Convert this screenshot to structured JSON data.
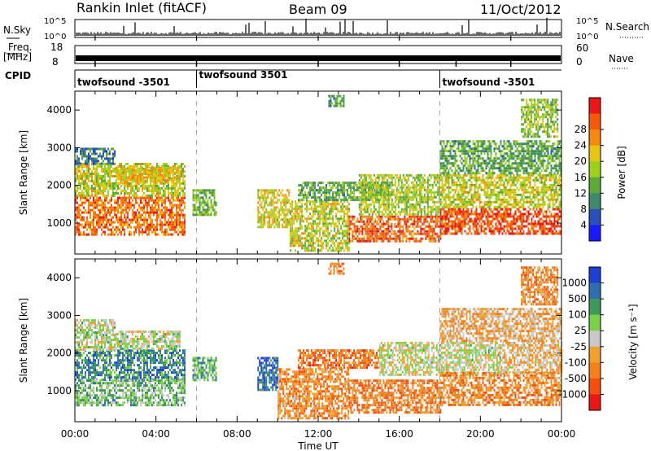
{
  "header": {
    "title": "Rankin Inlet (fitACF)",
    "beam": "Beam 09",
    "date": "11/Oct/2012"
  },
  "status_panels": {
    "nsky_label": "N.Sky",
    "nsky_ticks": [
      "10^5",
      "10^0"
    ],
    "nsearch_label": "N.Search",
    "nsearch_ticks": [
      "10^5",
      "10^0"
    ],
    "freq_label_1": "Freq.",
    "freq_label_2": "[MHz]",
    "freq_ticks": [
      "18",
      "8"
    ],
    "nave_label": "Nave",
    "nave_ticks": [
      "60",
      "0"
    ],
    "cpid_label": "CPID",
    "cpid_segments": [
      {
        "start_hour": 0,
        "end_hour": 6,
        "label": "twofsound -3501"
      },
      {
        "start_hour": 6,
        "end_hour": 18,
        "label": "twofsound 3501"
      },
      {
        "start_hour": 18,
        "end_hour": 24,
        "label": "twofsound -3501"
      }
    ]
  },
  "chart_data": [
    {
      "type": "heatmap",
      "parameter": "power",
      "ylabel": "Slant Range [km]",
      "xlabel": "",
      "x_range_hours": [
        0,
        24
      ],
      "ylim": [
        180,
        4500
      ],
      "y_ticks": [
        "1000",
        "2000",
        "3000",
        "4000"
      ],
      "colorbar_label": "Power [dB]",
      "colorbar_ticks": [
        "4",
        "8",
        "12",
        "16",
        "20",
        "24",
        "28"
      ],
      "colorbar_colors": [
        "#1a1aff",
        "#2a4fb8",
        "#3f8a6a",
        "#5caa3c",
        "#9fcf1e",
        "#e8c414",
        "#f28a12",
        "#f25a0e",
        "#e81818"
      ],
      "echo_bands": [
        {
          "start_hour": 0.0,
          "end_hour": 5.4,
          "range_low": 700,
          "range_high": 1700,
          "level": 0.82
        },
        {
          "start_hour": 0.0,
          "end_hour": 5.4,
          "range_low": 1700,
          "range_high": 2600,
          "level": 0.55
        },
        {
          "start_hour": 0.0,
          "end_hour": 2.0,
          "range_low": 2600,
          "range_high": 3000,
          "level": 0.22
        },
        {
          "start_hour": 2.0,
          "end_hour": 5.2,
          "range_low": 2100,
          "range_high": 2500,
          "level": 0.65
        },
        {
          "start_hour": 5.8,
          "end_hour": 7.0,
          "range_low": 1200,
          "range_high": 1900,
          "level": 0.4
        },
        {
          "start_hour": 9.0,
          "end_hour": 10.6,
          "range_low": 900,
          "range_high": 1900,
          "level": 0.6
        },
        {
          "start_hour": 10.6,
          "end_hour": 13.5,
          "range_low": 300,
          "range_high": 1600,
          "level": 0.55
        },
        {
          "start_hour": 11.0,
          "end_hour": 15.5,
          "range_low": 1600,
          "range_high": 2100,
          "level": 0.35
        },
        {
          "start_hour": 13.5,
          "end_hour": 18.0,
          "range_low": 500,
          "range_high": 1200,
          "level": 0.85
        },
        {
          "start_hour": 14.0,
          "end_hour": 18.0,
          "range_low": 1200,
          "range_high": 2300,
          "level": 0.5
        },
        {
          "start_hour": 18.0,
          "end_hour": 24.0,
          "range_low": 700,
          "range_high": 1400,
          "level": 0.9
        },
        {
          "start_hour": 18.0,
          "end_hour": 24.0,
          "range_low": 1400,
          "range_high": 2300,
          "level": 0.55
        },
        {
          "start_hour": 18.0,
          "end_hour": 24.0,
          "range_low": 2300,
          "range_high": 3200,
          "level": 0.35
        },
        {
          "start_hour": 12.5,
          "end_hour": 13.3,
          "range_low": 4100,
          "range_high": 4400,
          "level": 0.3
        },
        {
          "start_hour": 22.0,
          "end_hour": 23.8,
          "range_low": 3300,
          "range_high": 4300,
          "level": 0.45
        }
      ]
    },
    {
      "type": "heatmap",
      "parameter": "velocity",
      "ylabel": "Slant Range [km]",
      "xlabel": "Time UT",
      "x_range_hours": [
        0,
        24
      ],
      "x_ticks": [
        "00:00",
        "04:00",
        "08:00",
        "12:00",
        "16:00",
        "20:00",
        "00:00"
      ],
      "ylim": [
        180,
        4500
      ],
      "y_ticks": [
        "1000",
        "2000",
        "3000",
        "4000"
      ],
      "colorbar_label": "Velocity [m s^-1]",
      "colorbar_ticks": [
        "1000",
        "500",
        "100",
        "25",
        "-25",
        "-100",
        "-500",
        "-1000"
      ],
      "colorbar_colors": [
        "#1f3fd0",
        "#2f6fb0",
        "#3f9a5a",
        "#7dcf4a",
        "#c8c8c8",
        "#f0a030",
        "#f08020",
        "#f05010",
        "#e81818"
      ],
      "echo_bands": [
        {
          "start_hour": 0.0,
          "end_hour": 5.4,
          "range_low": 1300,
          "range_high": 2100,
          "level": 0.2
        },
        {
          "start_hour": 0.0,
          "end_hour": 2.0,
          "range_low": 2100,
          "range_high": 2900,
          "level": 0.45
        },
        {
          "start_hour": 2.0,
          "end_hour": 5.2,
          "range_low": 2100,
          "range_high": 2600,
          "level": 0.45
        },
        {
          "start_hour": 0.0,
          "end_hour": 5.4,
          "range_low": 600,
          "range_high": 1300,
          "level": 0.35
        },
        {
          "start_hour": 5.8,
          "end_hour": 7.0,
          "range_low": 1300,
          "range_high": 1900,
          "level": 0.28
        },
        {
          "start_hour": 9.0,
          "end_hour": 10.0,
          "range_low": 1000,
          "range_high": 1900,
          "level": 0.1
        },
        {
          "start_hour": 10.0,
          "end_hour": 13.5,
          "range_low": 300,
          "range_high": 1600,
          "level": 0.72
        },
        {
          "start_hour": 11.0,
          "end_hour": 15.0,
          "range_low": 1600,
          "range_high": 2100,
          "level": 0.78
        },
        {
          "start_hour": 13.5,
          "end_hour": 18.0,
          "range_low": 400,
          "range_high": 1300,
          "level": 0.75
        },
        {
          "start_hour": 15.0,
          "end_hour": 21.0,
          "range_low": 1400,
          "range_high": 2300,
          "level": 0.48
        },
        {
          "start_hour": 18.0,
          "end_hour": 24.0,
          "range_low": 600,
          "range_high": 1500,
          "level": 0.72
        },
        {
          "start_hour": 21.0,
          "end_hour": 24.0,
          "range_low": 1500,
          "range_high": 2300,
          "level": 0.6
        },
        {
          "start_hour": 18.0,
          "end_hour": 24.0,
          "range_low": 2300,
          "range_high": 3200,
          "level": 0.62
        },
        {
          "start_hour": 12.5,
          "end_hour": 13.3,
          "range_low": 4100,
          "range_high": 4400,
          "level": 0.72
        },
        {
          "start_hour": 22.0,
          "end_hour": 23.8,
          "range_low": 3300,
          "range_high": 4300,
          "level": 0.72
        }
      ]
    }
  ]
}
